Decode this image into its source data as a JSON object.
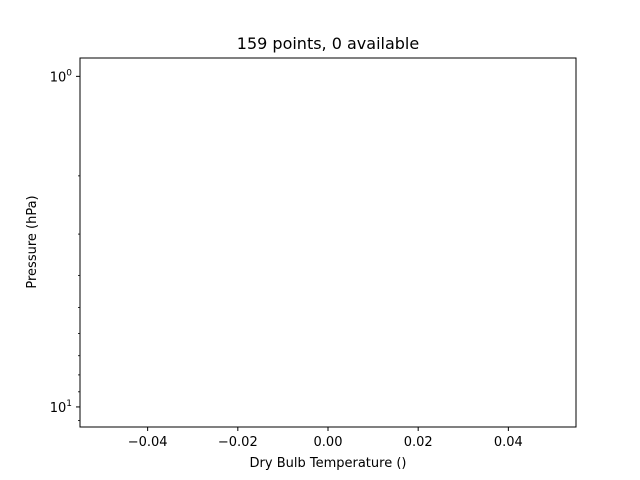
{
  "chart_data": {
    "type": "line",
    "title": "159 points, 0 available",
    "xlabel": "Dry Bulb Temperature ()",
    "ylabel": "Pressure (hPa)",
    "xlim": [
      -0.055,
      0.055
    ],
    "ylim": [
      11.5,
      0.88
    ],
    "y_scale": "log",
    "y_inverted": true,
    "grid": false,
    "legend": "none",
    "x_ticks": [
      {
        "value": -0.04,
        "label": "−0.04"
      },
      {
        "value": -0.02,
        "label": "−0.02"
      },
      {
        "value": 0.0,
        "label": "0.00"
      },
      {
        "value": 0.02,
        "label": "0.02"
      },
      {
        "value": 0.04,
        "label": "0.04"
      }
    ],
    "y_ticks": [
      {
        "value": 1,
        "base": "10",
        "exp": "0"
      },
      {
        "value": 10,
        "base": "10",
        "exp": "1"
      }
    ],
    "series": [],
    "colors": {
      "axes": "#000000",
      "background": "#ffffff"
    }
  }
}
